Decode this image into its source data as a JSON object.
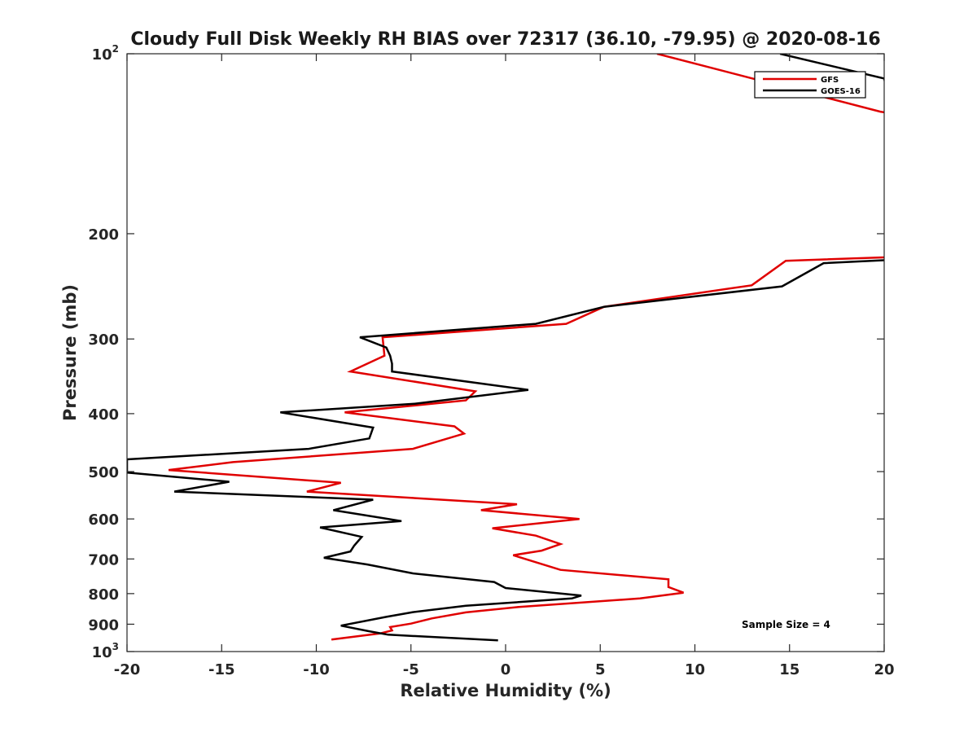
{
  "chart_data": {
    "type": "line",
    "title": "Cloudy Full Disk Weekly RH BIAS over 72317 (36.10, -79.95) @ 2020-08-16",
    "xlabel": "Relative Humidity (%)",
    "ylabel": "Pressure (mb)",
    "xlim": [
      -20,
      20
    ],
    "ylim": [
      100,
      1000
    ],
    "yscale": "log",
    "yreversed": true,
    "xticks": [
      -20,
      -15,
      -10,
      -5,
      0,
      5,
      10,
      15,
      20
    ],
    "xtick_labels": [
      "-20",
      "-15",
      "-10",
      "-5",
      "0",
      "5",
      "10",
      "15",
      "20"
    ],
    "yticks": [
      {
        "value": 100,
        "base": "10",
        "exp": "2"
      },
      {
        "value": 200,
        "label": "200"
      },
      {
        "value": 300,
        "label": "300"
      },
      {
        "value": 400,
        "label": "400"
      },
      {
        "value": 500,
        "label": "500"
      },
      {
        "value": 600,
        "label": "600"
      },
      {
        "value": 700,
        "label": "700"
      },
      {
        "value": 800,
        "label": "800"
      },
      {
        "value": 900,
        "label": "900"
      },
      {
        "value": 1000,
        "base": "10",
        "exp": "3"
      }
    ],
    "grid": false,
    "legend_position": "top-right",
    "annotation": "Sample Size = 4",
    "series": [
      {
        "name": "GFS",
        "color": "#e00000",
        "points": [
          [
            8.0,
            100
          ],
          [
            19.8,
            125
          ],
          [
            20.5,
            126
          ],
          [
            22,
            218
          ],
          [
            14.8,
            222
          ],
          [
            13.0,
            244
          ],
          [
            5.2,
            265
          ],
          [
            3.2,
            283
          ],
          [
            -6.5,
            298
          ],
          [
            -6.4,
            320
          ],
          [
            -8.2,
            340
          ],
          [
            -1.6,
            367
          ],
          [
            -2.1,
            380
          ],
          [
            -8.5,
            398
          ],
          [
            -2.7,
            420
          ],
          [
            -2.2,
            432
          ],
          [
            -4.9,
            458
          ],
          [
            -14.4,
            482
          ],
          [
            -17.8,
            497
          ],
          [
            -8.7,
            522
          ],
          [
            -10.5,
            540
          ],
          [
            0.6,
            567
          ],
          [
            -1.3,
            580
          ],
          [
            3.9,
            600
          ],
          [
            -0.7,
            622
          ],
          [
            1.6,
            640
          ],
          [
            2.9,
            661
          ],
          [
            1.9,
            678
          ],
          [
            0.4,
            690
          ],
          [
            2.9,
            730
          ],
          [
            8.6,
            757
          ],
          [
            8.6,
            780
          ],
          [
            9.4,
            797
          ],
          [
            7.1,
            815
          ],
          [
            0.7,
            842
          ],
          [
            -2.1,
            860
          ],
          [
            -3.9,
            880
          ],
          [
            -5.0,
            898
          ],
          [
            -6.1,
            910
          ],
          [
            -6.0,
            922
          ],
          [
            -6.6,
            932
          ],
          [
            -9.2,
            955
          ]
        ]
      },
      {
        "name": "GOES-16",
        "color": "#000000",
        "points": [
          [
            14.5,
            100
          ],
          [
            20,
            110
          ],
          [
            22,
            220
          ],
          [
            16.8,
            224
          ],
          [
            14.6,
            245
          ],
          [
            5.2,
            265
          ],
          [
            1.6,
            283
          ],
          [
            -7.7,
            298
          ],
          [
            -6.3,
            310
          ],
          [
            -6.1,
            320
          ],
          [
            -6.0,
            330
          ],
          [
            -6.0,
            340
          ],
          [
            1.2,
            365
          ],
          [
            -4.8,
            385
          ],
          [
            -11.9,
            398
          ],
          [
            -7.0,
            422
          ],
          [
            -7.2,
            440
          ],
          [
            -10.4,
            458
          ],
          [
            -20,
            477
          ],
          [
            -20,
            502
          ],
          [
            -14.6,
            520
          ],
          [
            -17.5,
            540
          ],
          [
            -7.0,
            557
          ],
          [
            -9.1,
            580
          ],
          [
            -5.5,
            605
          ],
          [
            -9.8,
            620
          ],
          [
            -7.6,
            643
          ],
          [
            -8.0,
            665
          ],
          [
            -8.2,
            680
          ],
          [
            -9.6,
            697
          ],
          [
            -7.3,
            715
          ],
          [
            -4.9,
            740
          ],
          [
            -0.6,
            765
          ],
          [
            0.0,
            783
          ],
          [
            4.0,
            806
          ],
          [
            3.5,
            815
          ],
          [
            -2.1,
            838
          ],
          [
            -4.9,
            859
          ],
          [
            -6.3,
            875
          ],
          [
            -8.7,
            905
          ],
          [
            -7.2,
            925
          ],
          [
            -6.2,
            937
          ],
          [
            -0.4,
            958
          ]
        ]
      }
    ]
  }
}
